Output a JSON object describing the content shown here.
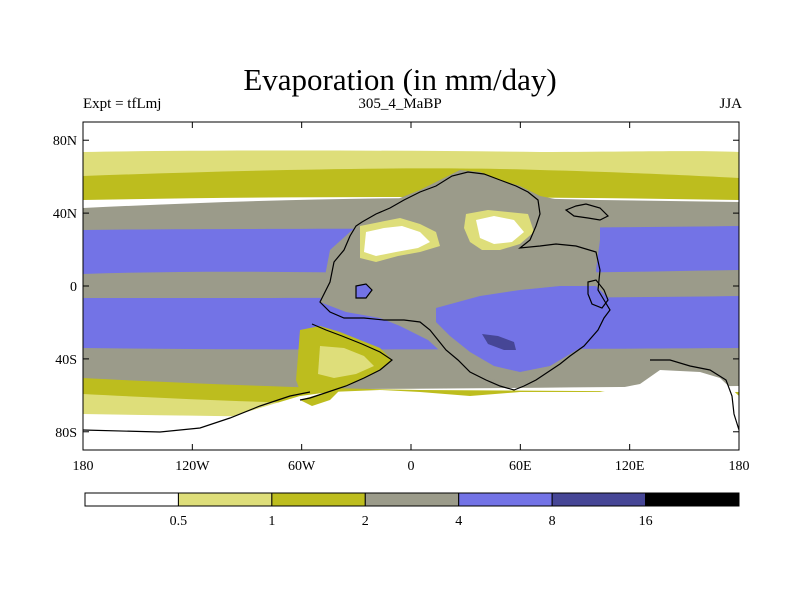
{
  "title": "Evaporation (in mm/day)",
  "subtitle_left": "Expt = tfLmj",
  "subtitle_center": "305_4_MaBP",
  "subtitle_right": "JJA",
  "chart_data": {
    "type": "heatmap",
    "title": "Evaporation (in mm/day)",
    "units": "mm/day",
    "experiment": "tfLmj",
    "period": "305_4_MaBP",
    "season": "JJA",
    "x_axis": {
      "range": [
        -180,
        180
      ],
      "ticks": [
        -180,
        -120,
        -60,
        0,
        60,
        120,
        180
      ],
      "tick_labels": [
        "180",
        "120W",
        "60W",
        "0",
        "60E",
        "120E",
        "180"
      ]
    },
    "y_axis": {
      "range": [
        -90,
        90
      ],
      "ticks": [
        80,
        40,
        0,
        -40,
        -80
      ],
      "tick_labels": [
        "80N",
        "40N",
        "0",
        "40S",
        "80S"
      ]
    },
    "colorbar": {
      "levels": [
        0.5,
        1,
        2,
        4,
        8,
        16
      ],
      "level_labels": [
        "0.5",
        "1",
        "2",
        "4",
        "8",
        "16"
      ],
      "colors": [
        "#ffffff",
        "#dede7a",
        "#bdbd1e",
        "#9b9b8a",
        "#7373e6",
        "#464696",
        "#000000"
      ]
    }
  }
}
